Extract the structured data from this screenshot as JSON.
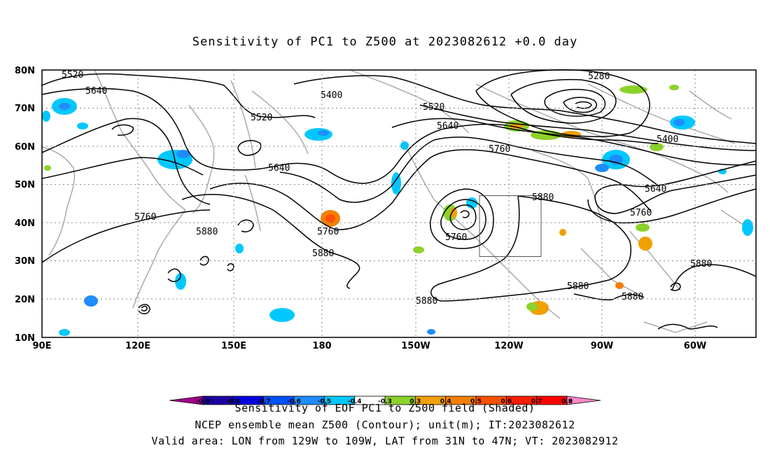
{
  "title": "Sensitivity of PC1 to Z500 at 2023082612 +0.0 day",
  "lat_labels": [
    "80N",
    "70N",
    "60N",
    "50N",
    "40N",
    "30N",
    "20N",
    "10N"
  ],
  "lon_labels": [
    "90E",
    "120E",
    "150E",
    "180",
    "150W",
    "120W",
    "90W",
    "60W"
  ],
  "contour_labels": [
    "5520",
    "5640",
    "5400",
    "5520",
    "5520",
    "5640",
    "5760",
    "5280",
    "5400",
    "5640",
    "5760",
    "5640",
    "5760",
    "5880",
    "5880",
    "5760",
    "5760",
    "5880",
    "5880",
    "5880",
    "5880",
    "5880",
    "5880"
  ],
  "colorbar_ticks": [
    "-0.9",
    "-0.8",
    "-0.7",
    "-0.6",
    "-0.5",
    "-0.4",
    "-0.3",
    "0.3",
    "0.4",
    "0.5",
    "0.6",
    "0.7",
    "0.8",
    "0.9"
  ],
  "colorbar_colors": [
    "#a0008c",
    "#1e00a0",
    "#0000dc",
    "#0050ff",
    "#1e8cff",
    "#00c8ff",
    "#ffffff",
    "#8cd22a",
    "#f0a000",
    "#f57f00",
    "#ff5000",
    "#ff1e00",
    "#ff0000",
    "#ff88c8"
  ],
  "footer": {
    "line1": "Sensitivity of EOF PC1 to Z500 field (Shaded)",
    "line2": "NCEP ensemble mean Z500 (Contour); unit(m); IT:2023082612",
    "line3": "Valid area: LON from 129W to 109W, LAT from 31N to 47N; VT: 2023082912"
  }
}
